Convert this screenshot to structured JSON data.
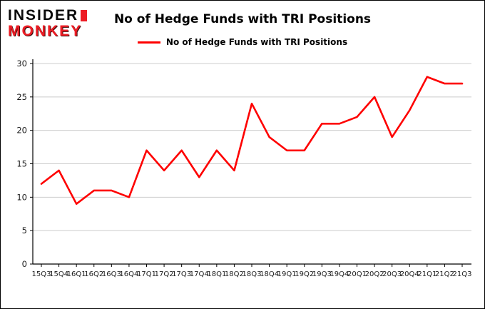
{
  "logo": {
    "line1": "INSIDER",
    "line2": "MONKEY"
  },
  "title": "No of Hedge Funds with TRI Positions",
  "legend": {
    "label": "No of Hedge Funds with TRI Positions"
  },
  "colors": {
    "line": "#fe0000",
    "logo_red": "#ed1c24",
    "grid": "#cccccc",
    "axis": "#000000"
  },
  "chart_data": {
    "type": "line",
    "title": "No of Hedge Funds with TRI Positions",
    "categories": [
      "15Q3",
      "15Q4",
      "16Q1",
      "16Q2",
      "16Q3",
      "16Q4",
      "17Q1",
      "17Q2",
      "17Q3",
      "17Q4",
      "18Q1",
      "18Q2",
      "18Q3",
      "18Q4",
      "19Q1",
      "19Q2",
      "19Q3",
      "19Q4",
      "20Q1",
      "20Q2",
      "20Q3",
      "20Q4",
      "21Q1",
      "21Q2",
      "21Q3"
    ],
    "values": [
      12,
      14,
      9,
      11,
      11,
      10,
      17,
      14,
      17,
      13,
      17,
      14,
      24,
      19,
      17,
      17,
      21,
      21,
      22,
      25,
      19,
      23,
      28,
      27,
      27
    ],
    "ylim": [
      0,
      30
    ],
    "yticks": [
      0,
      5,
      10,
      15,
      20,
      25,
      30
    ],
    "xlabel": "",
    "ylabel": "",
    "grid": true,
    "legend_position": "top",
    "line_color": "#fe0000"
  }
}
